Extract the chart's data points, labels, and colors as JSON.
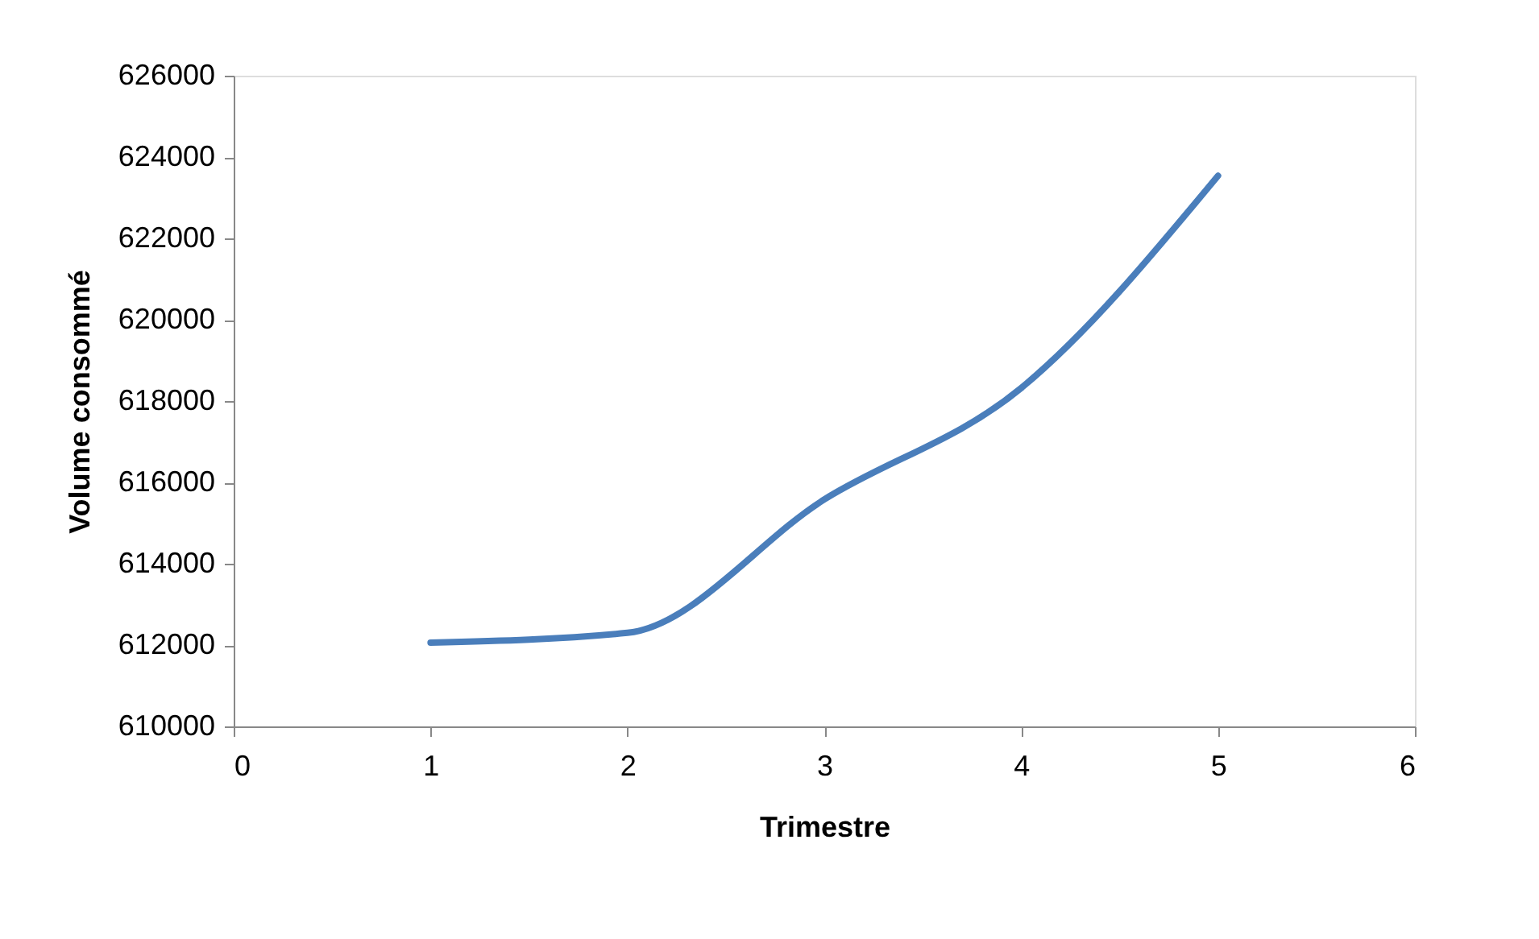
{
  "chart_data": {
    "type": "line",
    "xlabel": "Trimestre",
    "ylabel": "Volume consommé",
    "x": [
      1,
      2,
      3,
      4,
      5
    ],
    "series": [
      {
        "color": "#4a7ebb",
        "values": [
          612060,
          612300,
          615580,
          618320,
          623540
        ]
      }
    ],
    "xlim": [
      0,
      6
    ],
    "xticks": [
      0,
      1,
      2,
      3,
      4,
      5,
      6
    ],
    "ylim": [
      610000,
      626000
    ],
    "yticks": [
      610000,
      612000,
      614000,
      616000,
      618000,
      620000,
      622000,
      624000,
      626000
    ],
    "grid": false,
    "marker": "none",
    "line_style": "solid"
  }
}
